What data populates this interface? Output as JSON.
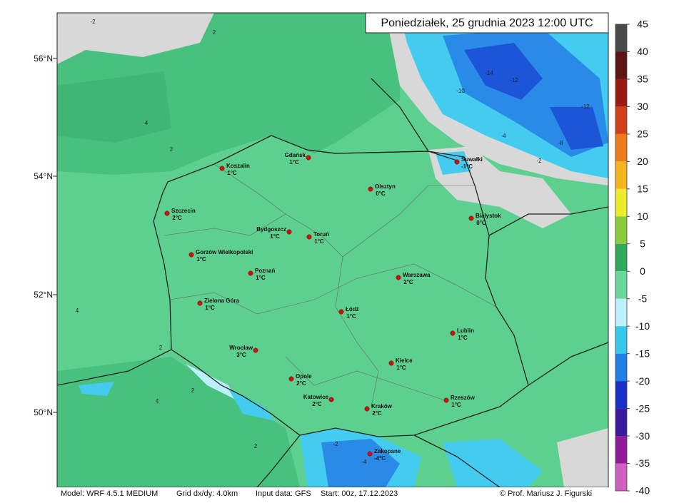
{
  "title": "Poniedziałek, 25 grudnia 2023 12:00 UTC",
  "latitude_labels": [
    "56°N",
    "54°N",
    "52°N",
    "50°N"
  ],
  "cities": [
    {
      "name": "Gdańsk",
      "temp": "1°C"
    },
    {
      "name": "Koszalin",
      "temp": "1°C"
    },
    {
      "name": "Suwałki",
      "temp": "-1°C"
    },
    {
      "name": "Olsztyn",
      "temp": "0°C"
    },
    {
      "name": "Szczecin",
      "temp": "2°C"
    },
    {
      "name": "Białystok",
      "temp": "0°C"
    },
    {
      "name": "Bydgoszcz",
      "temp": "1°C"
    },
    {
      "name": "Toruń",
      "temp": "1°C"
    },
    {
      "name": "Gorzów Wielkopolski",
      "temp": "1°C"
    },
    {
      "name": "Poznań",
      "temp": "1°C"
    },
    {
      "name": "Warszawa",
      "temp": "2°C"
    },
    {
      "name": "Zielona Góra",
      "temp": "1°C"
    },
    {
      "name": "Łódź",
      "temp": "1°C"
    },
    {
      "name": "Lublin",
      "temp": "1°C"
    },
    {
      "name": "Wrocław",
      "temp": "3°C"
    },
    {
      "name": "Kielce",
      "temp": "1°C"
    },
    {
      "name": "Opole",
      "temp": "2°C"
    },
    {
      "name": "Katowice",
      "temp": "2°C"
    },
    {
      "name": "Kraków",
      "temp": "2°C"
    },
    {
      "name": "Rzeszów",
      "temp": "1°C"
    },
    {
      "name": "Zakopane",
      "temp": "-4°C"
    }
  ],
  "contour_labels": [
    -2,
    2,
    4,
    -14,
    -12,
    -10,
    -12,
    -8,
    -4,
    -2,
    2,
    4,
    2,
    -2,
    -4,
    2,
    4,
    2
  ],
  "colorbar": {
    "ticks": [
      45,
      40,
      35,
      30,
      25,
      20,
      15,
      10,
      5,
      0,
      -5,
      -10,
      -15,
      -20,
      -25,
      -30,
      -35,
      -40
    ],
    "colors": [
      "#4a4a4a",
      "#5c1414",
      "#9c1a14",
      "#d2401a",
      "#ee7a18",
      "#f4b41e",
      "#ecec2a",
      "#8ccc3c",
      "#2faa5a",
      "#6ad69a",
      "#bdf0ff",
      "#33c8f0",
      "#2080e8",
      "#1830c8",
      "#3a1aa0",
      "#901a9a",
      "#d060c0",
      "#f0b0dc"
    ]
  },
  "footer": {
    "model": "Model: WRF 4.5.1 MEDIUM",
    "grid": "Grid dx/dy: 4.0km",
    "input": "Input data: GFS",
    "start": "Start: 00z, 17.12.2023",
    "credit": "© Prof. Mariusz J. Figurski"
  }
}
